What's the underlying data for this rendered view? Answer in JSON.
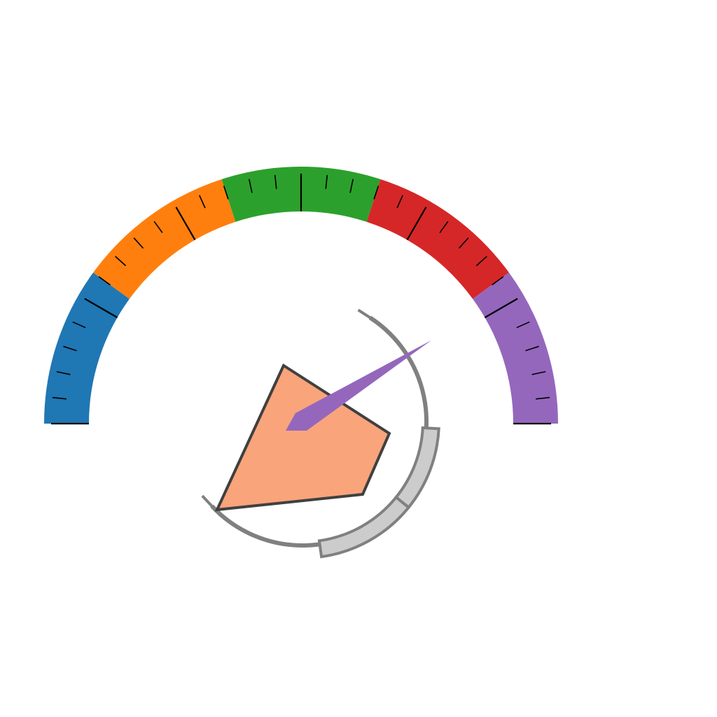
{
  "gauge": {
    "bands": [
      {
        "color": "#1f77b4"
      },
      {
        "color": "#ff7f0e"
      },
      {
        "color": "#2ca02c"
      },
      {
        "color": "#d62728"
      },
      {
        "color": "#9467bd"
      }
    ],
    "ticks": {
      "major_count": 7,
      "minor_per_major": 5,
      "color": "#000000"
    }
  },
  "dial": {
    "arc_color": "#808080",
    "highlight_fill": "#cccccc",
    "highlight_stroke": "#808080"
  },
  "polygon": {
    "fill": "#f9a47b",
    "stroke": "#404040"
  },
  "needle": {
    "color": "#9467bd"
  }
}
